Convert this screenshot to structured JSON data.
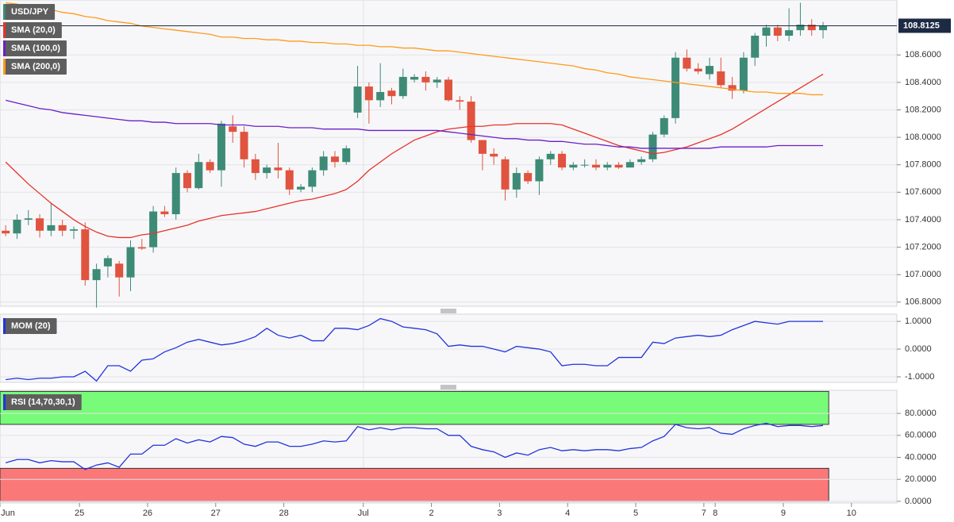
{
  "chart_data": [
    {
      "type": "candlestick",
      "categories": [
        "Jun",
        null,
        null,
        null,
        null,
        null,
        null,
        "25",
        null,
        null,
        null,
        null,
        null,
        "26",
        null,
        null,
        null,
        null,
        null,
        "27",
        null,
        null,
        null,
        null,
        null,
        "28",
        null,
        null,
        null,
        null,
        null,
        null,
        "Jul",
        null,
        null,
        null,
        null,
        null,
        "2",
        null,
        null,
        null,
        null,
        null,
        "3",
        null,
        null,
        null,
        null,
        null,
        "4",
        null,
        null,
        null,
        null,
        null,
        "5",
        null,
        null,
        null,
        null,
        null,
        "7",
        "8",
        null,
        null,
        null,
        null,
        null,
        "9",
        null,
        null,
        null,
        null,
        null,
        "10",
        null,
        null,
        null
      ],
      "ohlc": {
        "name": "USD/JPY",
        "up_color": "#3d8b76",
        "down_color": "#e0533f",
        "open": [
          107.32,
          107.3,
          107.4,
          107.41,
          107.32,
          107.36,
          107.32,
          107.33,
          106.96,
          107.06,
          107.08,
          106.98,
          107.2,
          107.2,
          107.46,
          107.44,
          107.74,
          107.63,
          107.82,
          107.76,
          108.08,
          108.04,
          107.84,
          107.74,
          107.78,
          107.76,
          107.62,
          107.64,
          107.76,
          107.86,
          107.82,
          108.18,
          108.37,
          108.27,
          108.34,
          108.3,
          108.42,
          108.44,
          108.4,
          108.42,
          108.27,
          108.26,
          107.98,
          107.88,
          107.84,
          107.62,
          107.74,
          107.68,
          107.84,
          107.88,
          107.78,
          107.8,
          107.8,
          107.78,
          107.8,
          107.78,
          107.82,
          107.84,
          108.02,
          108.14,
          108.58,
          108.5,
          108.46,
          108.48,
          108.38,
          108.34,
          108.58,
          108.74,
          108.8,
          108.74,
          108.78,
          108.82,
          108.78,
          null,
          null,
          null,
          null,
          null,
          null
        ],
        "high": [
          107.36,
          107.44,
          107.47,
          107.44,
          107.52,
          107.4,
          107.35,
          107.38,
          107.08,
          107.14,
          107.1,
          107.25,
          107.26,
          107.5,
          107.5,
          107.78,
          107.76,
          107.88,
          107.84,
          108.12,
          108.16,
          108.08,
          107.88,
          107.8,
          107.96,
          107.78,
          107.66,
          107.78,
          107.9,
          107.9,
          107.94,
          108.52,
          108.4,
          108.54,
          108.36,
          108.5,
          108.46,
          108.48,
          108.44,
          108.44,
          108.3,
          108.3,
          107.98,
          107.92,
          107.86,
          107.78,
          107.76,
          107.86,
          107.9,
          107.9,
          107.82,
          107.84,
          107.84,
          107.82,
          107.82,
          107.84,
          107.86,
          108.04,
          108.16,
          108.62,
          108.64,
          108.54,
          108.58,
          108.58,
          108.44,
          108.62,
          108.76,
          108.82,
          108.82,
          108.94,
          108.98,
          108.86,
          108.84,
          null,
          null,
          null,
          null,
          null,
          null
        ],
        "low": [
          107.28,
          107.26,
          107.36,
          107.27,
          107.28,
          107.28,
          107.26,
          106.92,
          106.76,
          106.98,
          106.84,
          106.88,
          107.18,
          107.16,
          107.42,
          107.4,
          107.6,
          107.62,
          107.74,
          107.64,
          107.96,
          107.78,
          107.69,
          107.7,
          107.7,
          107.58,
          107.6,
          107.6,
          107.72,
          107.78,
          107.8,
          108.14,
          108.1,
          108.22,
          108.24,
          108.28,
          108.4,
          108.34,
          108.36,
          108.26,
          108.2,
          107.96,
          107.76,
          107.8,
          107.54,
          107.56,
          107.66,
          107.58,
          107.8,
          107.76,
          107.76,
          107.78,
          107.76,
          107.76,
          107.77,
          107.78,
          107.8,
          107.82,
          108.0,
          108.1,
          108.48,
          108.46,
          108.42,
          108.36,
          108.28,
          108.32,
          108.52,
          108.66,
          108.7,
          108.7,
          108.74,
          108.74,
          108.72,
          null,
          null,
          null,
          null,
          null,
          null
        ],
        "close": [
          107.3,
          107.4,
          107.41,
          107.32,
          107.36,
          107.32,
          107.33,
          106.96,
          107.04,
          107.12,
          106.98,
          107.2,
          107.19,
          107.46,
          107.44,
          107.74,
          107.63,
          107.82,
          107.76,
          108.1,
          108.04,
          107.84,
          107.74,
          107.78,
          107.76,
          107.62,
          107.64,
          107.76,
          107.86,
          107.82,
          107.92,
          108.37,
          108.27,
          108.33,
          108.3,
          108.44,
          108.44,
          108.4,
          108.42,
          108.27,
          108.26,
          107.98,
          107.88,
          107.86,
          107.62,
          107.74,
          107.68,
          107.84,
          107.88,
          107.78,
          107.8,
          107.8,
          107.78,
          107.8,
          107.78,
          107.82,
          107.84,
          108.02,
          108.14,
          108.58,
          108.5,
          108.48,
          108.52,
          108.38,
          108.34,
          108.58,
          108.74,
          108.8,
          108.74,
          108.78,
          108.82,
          108.78,
          108.81,
          null,
          null,
          null,
          null,
          null,
          null
        ]
      },
      "series": [
        {
          "name": "SMA (20,0)",
          "color": "#e8322a",
          "values": [
            107.82,
            107.74,
            107.66,
            107.59,
            107.52,
            107.46,
            107.4,
            107.35,
            107.31,
            107.28,
            107.27,
            107.27,
            107.29,
            107.3,
            107.32,
            107.34,
            107.36,
            107.39,
            107.41,
            107.43,
            107.44,
            107.45,
            107.46,
            107.48,
            107.5,
            107.52,
            107.54,
            107.55,
            107.57,
            107.59,
            107.62,
            107.68,
            107.76,
            107.82,
            107.88,
            107.93,
            107.98,
            108.01,
            108.04,
            108.06,
            108.07,
            108.08,
            108.08,
            108.09,
            108.09,
            108.1,
            108.1,
            108.1,
            108.1,
            108.09,
            108.06,
            108.03,
            108.0,
            107.97,
            107.94,
            107.92,
            107.9,
            107.88,
            107.89,
            107.91,
            107.93,
            107.96,
            107.99,
            108.02,
            108.06,
            108.11,
            108.16,
            108.21,
            108.26,
            108.31,
            108.36,
            108.41,
            108.46,
            null,
            null,
            null,
            null,
            null,
            null
          ]
        },
        {
          "name": "SMA (100,0)",
          "color": "#6a1fc8",
          "values": [
            108.27,
            108.25,
            108.23,
            108.21,
            108.2,
            108.18,
            108.17,
            108.16,
            108.15,
            108.14,
            108.13,
            108.12,
            108.12,
            108.11,
            108.11,
            108.1,
            108.1,
            108.1,
            108.1,
            108.09,
            108.09,
            108.09,
            108.08,
            108.08,
            108.08,
            108.07,
            108.07,
            108.07,
            108.06,
            108.06,
            108.06,
            108.06,
            108.05,
            108.05,
            108.05,
            108.05,
            108.05,
            108.05,
            108.05,
            108.04,
            108.03,
            108.02,
            108.01,
            108.0,
            107.99,
            107.99,
            107.98,
            107.98,
            107.97,
            107.97,
            107.96,
            107.95,
            107.95,
            107.94,
            107.93,
            107.93,
            107.92,
            107.92,
            107.92,
            107.92,
            107.92,
            107.92,
            107.92,
            107.93,
            107.93,
            107.93,
            107.93,
            107.93,
            107.94,
            107.94,
            107.94,
            107.94,
            107.94,
            null,
            null,
            null,
            null,
            null,
            null
          ]
        },
        {
          "name": "SMA (200,0)",
          "color": "#ff9a1a",
          "values": [
            108.98,
            108.97,
            108.95,
            108.94,
            108.93,
            108.91,
            108.9,
            108.88,
            108.87,
            108.85,
            108.84,
            108.83,
            108.81,
            108.8,
            108.79,
            108.78,
            108.77,
            108.76,
            108.75,
            108.73,
            108.73,
            108.72,
            108.72,
            108.71,
            108.71,
            108.7,
            108.7,
            108.69,
            108.69,
            108.68,
            108.68,
            108.67,
            108.67,
            108.66,
            108.66,
            108.65,
            108.65,
            108.64,
            108.63,
            108.63,
            108.62,
            108.61,
            108.6,
            108.59,
            108.58,
            108.57,
            108.56,
            108.55,
            108.54,
            108.53,
            108.52,
            108.5,
            108.49,
            108.47,
            108.46,
            108.44,
            108.43,
            108.42,
            108.41,
            108.4,
            108.39,
            108.38,
            108.37,
            108.36,
            108.35,
            108.34,
            108.33,
            108.33,
            108.32,
            108.32,
            108.32,
            108.31,
            108.31,
            null,
            null,
            null,
            null,
            null,
            null
          ]
        }
      ],
      "ylim": [
        106.77,
        109.0
      ],
      "yticks": [
        {
          "value": 106.8,
          "label": "106.8000"
        },
        {
          "value": 107.0,
          "label": "107.0000"
        },
        {
          "value": 107.2,
          "label": "107.2000"
        },
        {
          "value": 107.4,
          "label": "107.4000"
        },
        {
          "value": 107.6,
          "label": "107.6000"
        },
        {
          "value": 107.8,
          "label": "107.8000"
        },
        {
          "value": 108.0,
          "label": "108.0000"
        },
        {
          "value": 108.2,
          "label": "108.2000"
        },
        {
          "value": 108.4,
          "label": "108.4000"
        },
        {
          "value": 108.6,
          "label": "108.6000"
        }
      ],
      "last_price": 108.8125,
      "grid": true,
      "legend": "top-left"
    },
    {
      "type": "line",
      "series": [
        {
          "name": "MOM (20)",
          "color": "#2233dd",
          "values": [
            -1.1,
            -1.05,
            -1.1,
            -1.05,
            -1.05,
            -1.0,
            -1.0,
            -0.8,
            -1.15,
            -0.6,
            -0.6,
            -0.8,
            -0.4,
            -0.35,
            -0.1,
            0.05,
            0.25,
            0.35,
            0.25,
            0.15,
            0.2,
            0.3,
            0.45,
            0.75,
            0.5,
            0.4,
            0.5,
            0.3,
            0.3,
            0.75,
            0.75,
            0.7,
            0.85,
            1.1,
            1.0,
            0.8,
            0.75,
            0.7,
            0.55,
            0.1,
            0.15,
            0.1,
            0.1,
            0.0,
            -0.1,
            0.1,
            0.05,
            0.0,
            -0.1,
            -0.6,
            -0.55,
            -0.55,
            -0.6,
            -0.6,
            -0.3,
            -0.3,
            -0.3,
            0.25,
            0.2,
            0.4,
            0.45,
            0.5,
            0.45,
            0.5,
            0.7,
            0.85,
            1.0,
            0.95,
            0.9,
            1.0,
            1.0,
            1.0,
            1.0,
            null,
            null,
            null,
            null,
            null,
            null
          ]
        }
      ],
      "ylim": [
        -1.2,
        1.26
      ],
      "yticks": [
        {
          "value": -1,
          "label": "-1.0000"
        },
        {
          "value": 0,
          "label": "0.0000"
        },
        {
          "value": 1,
          "label": "1.0000"
        }
      ],
      "grid": true,
      "legend": "top-left"
    },
    {
      "type": "line",
      "series": [
        {
          "name": "RSI (14,70,30,1)",
          "color": "#2233dd",
          "values": [
            35,
            38,
            38,
            35,
            37,
            36,
            36,
            29,
            33,
            35,
            31,
            43,
            43,
            51,
            51,
            57,
            53,
            56,
            54,
            59,
            58,
            52,
            50,
            54,
            54,
            50,
            50,
            52,
            55,
            54,
            55,
            68,
            65,
            67,
            65,
            67,
            67,
            66,
            66,
            60,
            60,
            50,
            47,
            45,
            40,
            44,
            42,
            47,
            49,
            46,
            47,
            46,
            47,
            47,
            46,
            48,
            49,
            55,
            59,
            70,
            67,
            66,
            67,
            62,
            61,
            66,
            69,
            71,
            68,
            69,
            69,
            68,
            69,
            null,
            null,
            null,
            null,
            null,
            null
          ]
        }
      ],
      "bands": [
        {
          "from": 70,
          "to": 100,
          "color": "#78fb78"
        },
        {
          "from": 0,
          "to": 30,
          "color": "#fb7878"
        }
      ],
      "ylim": [
        -1.5,
        101
      ],
      "yticks": [
        {
          "value": 0,
          "label": "0.0000"
        },
        {
          "value": 20,
          "label": "20.0000"
        },
        {
          "value": 40,
          "label": "40.0000"
        },
        {
          "value": 60,
          "label": "60.0000"
        },
        {
          "value": 80,
          "label": "80.0000"
        }
      ],
      "grid": true,
      "legend": "top-left"
    }
  ]
}
